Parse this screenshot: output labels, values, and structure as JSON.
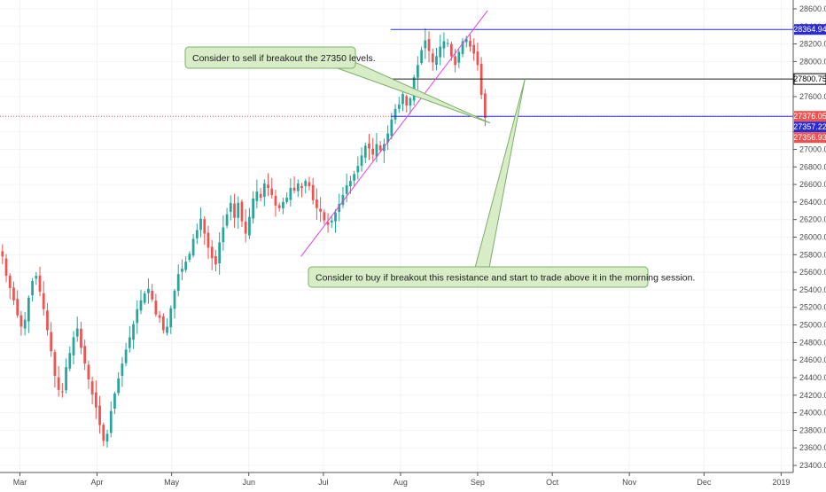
{
  "chart_data": {
    "type": "candlestick",
    "y_axis": {
      "range": [
        23350,
        28650
      ],
      "tick_labels": [
        "23400.00",
        "23600.00",
        "23800.00",
        "24000.00",
        "24200.00",
        "24400.00",
        "24600.00",
        "24800.00",
        "25000.00",
        "25200.00",
        "25400.00",
        "25600.00",
        "25800.00",
        "26000.00",
        "26200.00",
        "26400.00",
        "26600.00",
        "26800.00",
        "27000.00",
        "27200.00",
        "27400.00",
        "27600.00",
        "27800.00",
        "28000.00",
        "28200.00",
        "28400.00",
        "28600.00"
      ],
      "position": "right"
    },
    "x_axis": {
      "tick_labels": [
        "Mar",
        "Apr",
        "May",
        "Jun",
        "Jul",
        "Aug",
        "Sep",
        "Oct",
        "Nov",
        "Dec",
        "2019"
      ],
      "start_date": "2018-02-21",
      "end_date": "2019-01-03"
    },
    "grid": true,
    "colors": {
      "up": "#26a69a",
      "down": "#ef5350",
      "resistance": "#2b2bd6",
      "trendline": "#ea3de8",
      "level": "#222222",
      "callout_fill": "#d7ecc7",
      "callout_border": "#7cb06a"
    },
    "closes": [
      25780,
      25560,
      25420,
      25280,
      25110,
      24980,
      25060,
      25310,
      25500,
      25560,
      25380,
      25180,
      24940,
      24700,
      24420,
      24260,
      24240,
      24520,
      24680,
      24860,
      24960,
      24740,
      24560,
      24380,
      24210,
      24060,
      23860,
      23680,
      23760,
      24020,
      24220,
      24390,
      24560,
      24720,
      24860,
      25010,
      25180,
      25280,
      25360,
      25410,
      25290,
      25120,
      25080,
      24940,
      24980,
      25190,
      25390,
      25580,
      25640,
      25720,
      25810,
      25980,
      26080,
      26210,
      26040,
      25880,
      25760,
      25690,
      25940,
      26110,
      26260,
      26390,
      26220,
      26390,
      26180,
      26040,
      26230,
      26440,
      26520,
      26450,
      26610,
      26560,
      26480,
      26360,
      26330,
      26400,
      26450,
      26560,
      26530,
      26610,
      26560,
      26640,
      26580,
      26420,
      26330,
      26290,
      26190,
      26140,
      26190,
      26280,
      26380,
      26480,
      26590,
      26640,
      26720,
      26810,
      26930,
      27040,
      27010,
      26940,
      27060,
      26990,
      27060,
      27180,
      27340,
      27460,
      27510,
      27630,
      27500,
      27580,
      27820,
      27960,
      28130,
      28240,
      28120,
      27990,
      28060,
      28170,
      28230,
      28210,
      28060,
      27960,
      28110,
      28230,
      28260,
      28170,
      28090,
      27960,
      27620,
      27357.22
    ],
    "resistance_level": 28364.94,
    "level_line": 27800.75,
    "support_level": 27376.05,
    "price_tags": [
      {
        "value": 28364.94,
        "label": "28364.94",
        "style": "blue"
      },
      {
        "value": 27800.75,
        "label": "27800.75",
        "style": "black"
      },
      {
        "value": 27376.05,
        "label": "27376.05",
        "style": "red"
      },
      {
        "value": 27357.22,
        "label": "27357.22",
        "style": "blue"
      },
      {
        "value": 27356.93,
        "label": "27356.93",
        "style": "red"
      }
    ],
    "annotations": [
      {
        "text": "Consider to sell if breakout the 27350 levels."
      },
      {
        "text": "Consider to buy  if breakout this resistance and start to trade above it in the morning session."
      }
    ]
  }
}
